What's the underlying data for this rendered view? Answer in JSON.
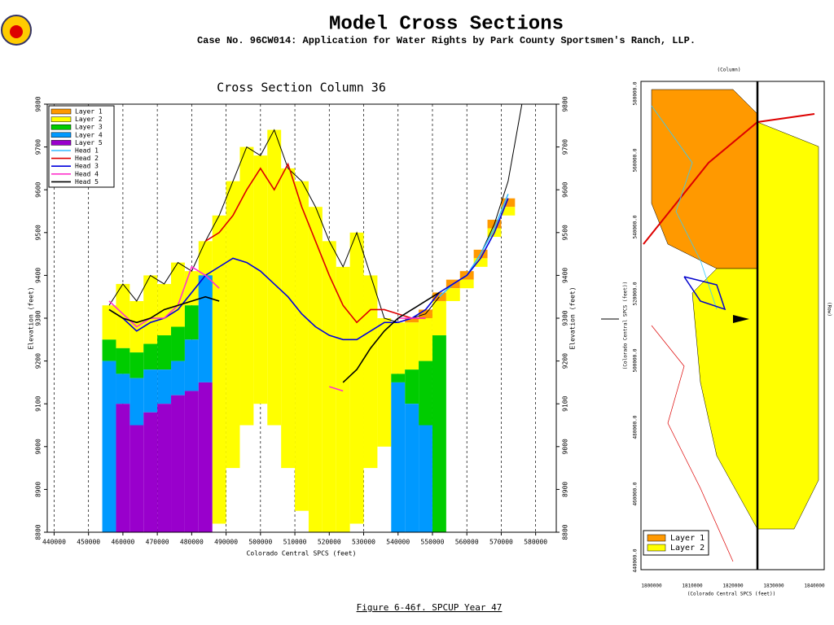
{
  "header": {
    "title": "Model Cross Sections",
    "subtitle": "Case No. 96CW014: Application for Water Rights by Park County Sportsmen's Ranch, LLP."
  },
  "footer": "Figure 6-46f.  SPCUP Year 47",
  "chart_data": {
    "type": "layered-section",
    "title": "Cross Section Column 36",
    "xlabel": "Colorado Central SPCS (feet)",
    "ylabel": "Elevation (feet)",
    "xlim": [
      438000,
      586000
    ],
    "ylim": [
      8800,
      9800
    ],
    "xticks": [
      440000,
      450000,
      460000,
      470000,
      480000,
      490000,
      500000,
      510000,
      520000,
      530000,
      540000,
      550000,
      560000,
      570000,
      580000
    ],
    "yticks": [
      8800,
      8900,
      9000,
      9100,
      9200,
      9300,
      9400,
      9500,
      9600,
      9700,
      9800
    ],
    "grid": "x",
    "legend": "upper left",
    "step": 4000,
    "x": [
      456000,
      460000,
      464000,
      468000,
      472000,
      476000,
      480000,
      484000,
      488000,
      492000,
      496000,
      500000,
      504000,
      508000,
      512000,
      516000,
      520000,
      524000,
      528000,
      532000,
      536000,
      540000,
      544000,
      548000,
      552000,
      556000,
      560000,
      564000,
      568000,
      572000,
      576000
    ],
    "surface": [
      9330,
      9380,
      9340,
      9400,
      9380,
      9430,
      9410,
      9480,
      9540,
      9620,
      9700,
      9680,
      9740,
      9650,
      9620,
      9560,
      9480,
      9420,
      9500,
      9400,
      9300,
      9290,
      9300,
      9310,
      9350,
      9380,
      9400,
      9450,
      9520,
      9620,
      9800
    ],
    "layers": [
      {
        "name": "Layer 1",
        "color": "#ff9900",
        "values": [
          null,
          null,
          null,
          null,
          null,
          null,
          null,
          null,
          null,
          null,
          null,
          null,
          null,
          null,
          null,
          null,
          null,
          null,
          null,
          null,
          null,
          null,
          9300,
          9320,
          9360,
          9390,
          9410,
          9460,
          9530,
          9580,
          null
        ]
      },
      {
        "name": "Layer 2",
        "color": "#ffff00",
        "values": [
          9330,
          9380,
          9340,
          9400,
          9380,
          9430,
          9410,
          9480,
          9540,
          9620,
          9700,
          9680,
          9740,
          9650,
          9620,
          9560,
          9480,
          9420,
          9500,
          9400,
          9300,
          9290,
          9290,
          9300,
          9340,
          9370,
          9390,
          9440,
          9510,
          9560,
          null
        ],
        "bottom": [
          null,
          null,
          null,
          null,
          null,
          null,
          null,
          null,
          8820,
          8950,
          9050,
          9100,
          9050,
          8950,
          8850,
          8800,
          8800,
          8800,
          8820,
          8950,
          9000,
          null,
          null,
          null,
          null,
          9340,
          9370,
          9420,
          9490,
          9540,
          null
        ]
      },
      {
        "name": "Layer 3",
        "color": "#00cc00",
        "values": [
          9250,
          9230,
          9220,
          9240,
          9260,
          9280,
          9330,
          9350,
          null,
          null,
          null,
          null,
          null,
          null,
          null,
          null,
          null,
          null,
          null,
          null,
          null,
          9170,
          9180,
          9200,
          9260,
          null,
          null,
          null,
          null,
          null,
          null
        ]
      },
      {
        "name": "Layer 4",
        "color": "#0099ff",
        "values": [
          9200,
          9170,
          9160,
          9180,
          9180,
          9200,
          9250,
          9400,
          null,
          null,
          null,
          null,
          null,
          null,
          null,
          null,
          null,
          null,
          null,
          null,
          null,
          9150,
          9100,
          9050,
          null,
          null,
          null,
          null,
          null,
          null,
          null
        ]
      },
      {
        "name": "Layer 5",
        "color": "#9900cc",
        "values": [
          null,
          9100,
          9050,
          9080,
          9100,
          9120,
          9130,
          9150,
          null,
          null,
          null,
          null,
          null,
          null,
          null,
          null,
          null,
          null,
          null,
          null,
          null,
          null,
          null,
          null,
          null,
          null,
          null,
          null,
          null,
          null,
          null
        ]
      }
    ],
    "series": [
      {
        "name": "Head 1",
        "color": "#33bbff",
        "values": [
          null,
          null,
          null,
          null,
          null,
          null,
          null,
          null,
          null,
          null,
          null,
          null,
          null,
          null,
          null,
          null,
          null,
          null,
          null,
          null,
          null,
          null,
          null,
          null,
          9350,
          9380,
          9400,
          9450,
          9510,
          9590,
          null
        ]
      },
      {
        "name": "Head 2",
        "color": "#dd0000",
        "values": [
          null,
          null,
          null,
          null,
          null,
          null,
          null,
          9480,
          9500,
          9540,
          9600,
          9650,
          9600,
          9660,
          9560,
          9480,
          9400,
          9330,
          9290,
          9320,
          9320,
          9310,
          9300,
          9300,
          null,
          null,
          null,
          null,
          null,
          null,
          null
        ]
      },
      {
        "name": "Head 3",
        "color": "#0000dd",
        "values": [
          9320,
          9300,
          9270,
          9290,
          9300,
          9320,
          9360,
          9400,
          9420,
          9440,
          9430,
          9410,
          9380,
          9350,
          9310,
          9280,
          9260,
          9250,
          9250,
          9270,
          9290,
          9290,
          9300,
          9320,
          9360,
          9380,
          9400,
          9440,
          9500,
          9580,
          null
        ]
      },
      {
        "name": "Head 4",
        "color": "#ff33cc",
        "values": [
          9340,
          9310,
          9280,
          9300,
          9300,
          9330,
          9420,
          9400,
          9370,
          null,
          null,
          null,
          null,
          null,
          null,
          null,
          9140,
          9130,
          null,
          null,
          null,
          9300,
          9300,
          9300,
          null,
          null,
          null,
          null,
          null,
          null,
          null
        ]
      },
      {
        "name": "Head 5",
        "color": "#000000",
        "values": [
          9320,
          9300,
          9290,
          9300,
          9320,
          9330,
          9340,
          9350,
          9340,
          null,
          null,
          null,
          null,
          null,
          null,
          null,
          null,
          9150,
          9180,
          9230,
          9270,
          9300,
          9320,
          9340,
          9360,
          null,
          null,
          null,
          null,
          null,
          null
        ]
      }
    ]
  },
  "map": {
    "column_label": "(Column)",
    "row_label": "(Row)",
    "x_label": "(Colorado Central SPCS (feet))",
    "y_label": "(Colorado Central SPCS (feet))",
    "x_ticks": [
      "1800000",
      "1810000",
      "1820000",
      "1830000",
      "1840000"
    ],
    "y_ticks": [
      "580000.0",
      "560000.0",
      "540000.0",
      "520000.0",
      "500000.0",
      "480000.0",
      "460000.0",
      "440000.0"
    ],
    "legend": [
      {
        "name": "Layer 1",
        "color": "#ff9900"
      },
      {
        "name": "Layer 2",
        "color": "#ffff00"
      }
    ]
  }
}
